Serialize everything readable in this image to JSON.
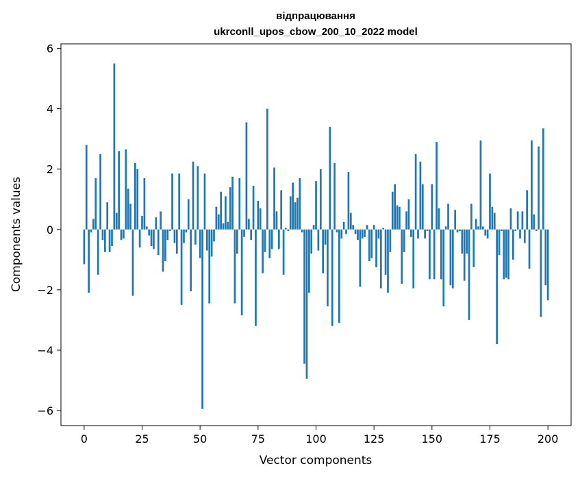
{
  "chart_data": {
    "type": "bar",
    "title": "відпрацювання",
    "subtitle": "ukrconll_upos_cbow_200_10_2022 model",
    "xlabel": "Vector components",
    "ylabel": "Components values",
    "xlim": [
      -10,
      210
    ],
    "ylim": [
      -6.5,
      6.15
    ],
    "xticks": [
      0,
      25,
      50,
      75,
      100,
      125,
      150,
      175,
      200
    ],
    "yticks": [
      -6,
      -4,
      -2,
      0,
      2,
      4,
      6
    ],
    "grid": false,
    "bar_color": "#1f77b4",
    "values": [
      -1.15,
      2.8,
      -2.1,
      -0.1,
      0.35,
      1.7,
      -1.5,
      2.5,
      -0.35,
      -0.75,
      0.9,
      -0.75,
      -0.55,
      5.5,
      0.55,
      2.6,
      -0.35,
      -0.3,
      2.65,
      1.35,
      0.85,
      -2.2,
      2.2,
      2.0,
      -0.6,
      0.45,
      1.7,
      0.1,
      -0.2,
      -0.55,
      -0.65,
      0.4,
      -0.85,
      0.6,
      -1.4,
      -1.05,
      -0.35,
      -0.05,
      1.85,
      -0.45,
      -0.8,
      1.85,
      -2.5,
      -0.45,
      -0.1,
      1.0,
      -2.05,
      2.25,
      -0.5,
      2.1,
      -0.95,
      -5.95,
      1.85,
      -0.7,
      -2.45,
      -0.9,
      -0.4,
      0.75,
      0.5,
      1.25,
      0.2,
      1.1,
      0.25,
      1.4,
      1.75,
      -2.45,
      -0.8,
      1.7,
      -2.85,
      -0.25,
      3.55,
      0.35,
      -0.35,
      1.45,
      -3.2,
      0.95,
      0.7,
      -1.45,
      -0.75,
      4.0,
      -0.95,
      -0.65,
      2.05,
      0.6,
      -0.65,
      1.3,
      -1.5,
      0.05,
      -0.05,
      1.1,
      1.55,
      0.9,
      1.05,
      1.7,
      -0.1,
      -4.45,
      -4.95,
      -2.1,
      -0.8,
      0.15,
      1.6,
      -0.7,
      2.0,
      -1.45,
      -0.5,
      -2.55,
      3.4,
      -3.2,
      2.2,
      -0.1,
      -3.1,
      -0.3,
      0.25,
      -0.15,
      1.9,
      0.55,
      0.15,
      -0.15,
      -0.35,
      -1.9,
      -0.3,
      -0.25,
      0.15,
      -1.05,
      -0.95,
      0.15,
      -1.25,
      -0.3,
      -1.95,
      0.05,
      -1.5,
      -2.1,
      -0.75,
      1.25,
      1.5,
      0.8,
      0.75,
      -1.8,
      -0.75,
      0.6,
      1.0,
      -0.25,
      -1.95,
      2.5,
      -0.3,
      2.25,
      1.5,
      -0.3,
      -0.05,
      -1.65,
      1.5,
      -1.65,
      2.9,
      0.7,
      -1.65,
      -2.55,
      0.1,
      0.85,
      -1.85,
      -1.95,
      0.65,
      -0.1,
      -0.05,
      -0.8,
      -1.7,
      -0.8,
      -3.0,
      0.85,
      -1.25,
      0.35,
      0.1,
      2.95,
      0.1,
      -0.2,
      -0.3,
      1.85,
      0.75,
      0.55,
      -3.8,
      -0.85,
      -0.05,
      -1.65,
      -1.6,
      -1.65,
      0.7,
      -1.0,
      -0.05,
      0.6,
      -0.3,
      0.6,
      -0.45,
      1.3,
      -1.3,
      2.95,
      0.5,
      -0.05,
      2.75,
      -2.9,
      3.35,
      -1.85,
      -2.35
    ]
  }
}
